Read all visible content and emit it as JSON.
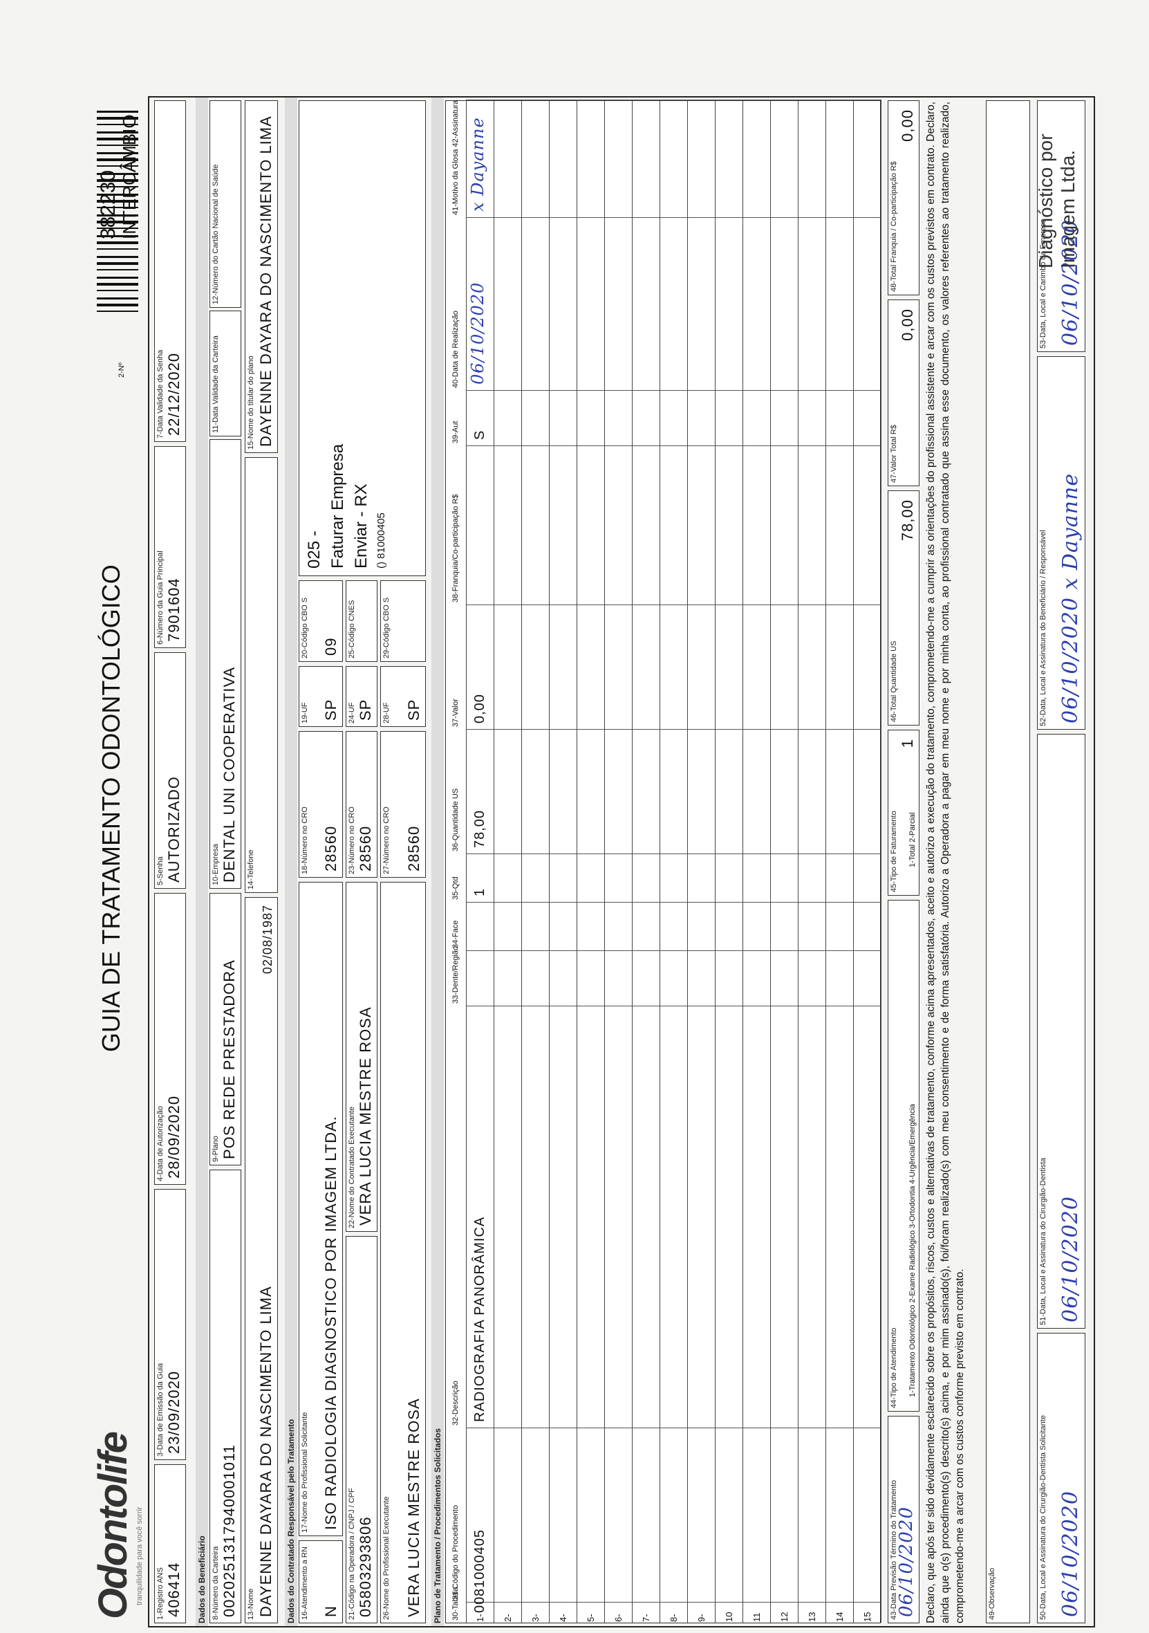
{
  "header": {
    "logo": "Odontolife",
    "tagline": "tranquilidade para você sorrir",
    "title": "GUIA DE TRATAMENTO ODONTOLÓGICO",
    "number_label": "2-Nº",
    "number": "382230",
    "exchange": "INTERCÂMBIO"
  },
  "sections": [
    "Dados do Beneficiário",
    "Dados do Contratado Responsável pelo Tratamento",
    "Plano de Tratamento / Procedimentos Solicitados"
  ],
  "fields": [
    {
      "label": "1-Registro ANS",
      "value": "406414"
    },
    {
      "label": "3-Data de Emissão da Guia",
      "value": "23/09/2020"
    },
    {
      "label": "4-Data de Autorização",
      "value": "28/09/2020"
    },
    {
      "label": "5-Senha",
      "value": "AUTORIZADO"
    },
    {
      "label": "6-Número da Guia Principal",
      "value": "7901604"
    },
    {
      "label": "7-Data Validade da Senha",
      "value": "22/12/2020"
    },
    {
      "label": "8-Número da Carteira",
      "value": "0020251317940001011"
    },
    {
      "label": "9-Plano",
      "value": "POS REDE PRESTADORA"
    },
    {
      "label": "10-Empresa",
      "value": "DENTAL UNI  COOPERATIVA"
    },
    {
      "label": "11-Data Validade da Carteira"
    },
    {
      "label": "12-Número do Cartão Nacional de Saúde"
    },
    {
      "label": "13-Nome",
      "value": "DAYENNE DAYARA DO NASCIMENTO LIMA",
      "extra": "02/08/1987"
    },
    {
      "label": "14-Telefone"
    },
    {
      "label": "15-Nome do titular do plano",
      "value": "DAYENNE DAYARA DO NASCIMENTO LIMA"
    },
    {
      "label": "16-Atendimento a RN",
      "value": "N"
    },
    {
      "label": "17-Nome do Profissional Solicitante",
      "value": "ISO RADIOLOGIA DIAGNOSTICO POR IMAGEM LTDA."
    },
    {
      "label": "18-Número no CRO",
      "value": "28560"
    },
    {
      "label": "19-UF",
      "value": "SP"
    },
    {
      "label": "20-Código CBO S",
      "value": "09"
    },
    {
      "label": "21-Código na Operadora / CNPJ / CPF",
      "value": "05803293806"
    },
    {
      "label": "22-Nome do Contratado Executante",
      "value": "VERA LUCIA MESTRE ROSA"
    },
    {
      "label": "23-Número no CRO",
      "value": "28560"
    },
    {
      "label": "24-UF",
      "value": "SP"
    },
    {
      "label": "25-Código CNES"
    },
    {
      "label": "26-Nome do Profissional Executante",
      "value": "VERA LUCIA MESTRE ROSA"
    },
    {
      "label": "27-Número no CRO",
      "value": "28560"
    },
    {
      "label": "28-UF",
      "value": "SP"
    },
    {
      "label": "29-Código CBO S"
    }
  ],
  "billing_note": [
    "025 -",
    "Faturar Empresa",
    "Enviar - RX",
    "() 81000405"
  ],
  "table": {
    "columns": [
      "30-Tabela",
      "31-Código do Procedimento",
      "32-Descrição",
      "33-Dente/Região",
      "34-Face",
      "35-Qtd",
      "36-Quantidade US",
      "37-Valor",
      "38-Franquia/Co-participação R$",
      "39-Aut",
      "40-Data de Realização",
      "41-Motivo da Glosa  42-Assinatura"
    ],
    "rows": [
      {
        "n": "1-",
        "table": "00",
        "code": "81000405",
        "description": "RADIOGRAFIA PANORÂMICA",
        "qty": "1",
        "us_qty": "78,00",
        "value": "0,00",
        "aut": "S",
        "date": "06/10/2020",
        "signature": "x Dayanne"
      },
      {
        "n": "2-"
      },
      {
        "n": "3-"
      },
      {
        "n": "4-"
      },
      {
        "n": "5-"
      },
      {
        "n": "6-"
      },
      {
        "n": "7-"
      },
      {
        "n": "8-"
      },
      {
        "n": "9-"
      },
      {
        "n": "10"
      },
      {
        "n": "11"
      },
      {
        "n": "12"
      },
      {
        "n": "13"
      },
      {
        "n": "14"
      },
      {
        "n": "15"
      }
    ]
  },
  "totals": [
    {
      "label": "43-Data Previsão Término do Tratamento",
      "value": "06/10/2020"
    },
    {
      "label": "44-Tipo de Atendimento",
      "note": "1-Tratamento Odontológico  2-Exame Radiológico  3-Ortodontia  4-Urgência/Emergência"
    },
    {
      "label": "45-Tipo de Faturamento",
      "value": "1",
      "note": "1-Total  2-Parcial"
    },
    {
      "label": "46-Total Quantidade US",
      "value": "78,00"
    },
    {
      "label": "47-Valor Total R$",
      "value": "0,00"
    },
    {
      "label": "48-Total Franquia / Co-participação R$",
      "value": "0,00"
    }
  ],
  "declaration": "Declaro, que após ter sido devidamente esclarecido sobre os propósitos, riscos, custos e alternativas de tratamento, conforme acima apresentados, aceito e autorizo a execução do tratamento, comprometendo-me a cumprir as orientações do profissional assistente e arcar com os custos previstos em contrato. Declaro, ainda que o(s) procedimento(s) descrito(s) acima, e por mim assinado(s), foi/foram realizado(s) com meu consentimento e de forma satisfatória. Autorizo a Operadora a pagar em meu nome e por minha conta, ao profissional contratado que assina esse documento, os valores referentes ao tratamento realizado, comprometendo-me a arcar com os custos conforme previsto em contrato.",
  "observation_label": "49-Observação",
  "signatures": [
    {
      "label": "50-Data, Local e Assinatura do Cirurgião-Dentista Solicitante",
      "value": "06/10/2020"
    },
    {
      "label": "51-Data, Local e Assinatura do Cirurgião-Dentista",
      "value": "06/10/2020"
    },
    {
      "label": "52-Data, Local e Assinatura do Beneficiário / Responsável",
      "value": "06/10/2020 x Dayanne"
    },
    {
      "label": "53-Data, Local e Carimbo da Empresa",
      "value": "06/10/2020",
      "stamp": "Diagnóstico por Imagem Ltda."
    }
  ]
}
